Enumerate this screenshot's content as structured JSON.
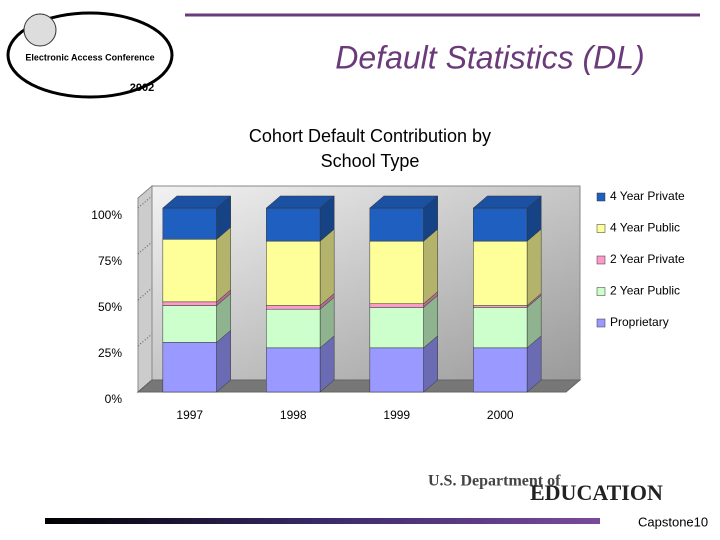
{
  "slide": {
    "title": "Default Statistics (DL)",
    "logo": {
      "name": "Electronic Access Conference",
      "year": "2002"
    },
    "footer": {
      "department": "U.S. Department of",
      "agency": "EDUCATION",
      "page": "Capstone10"
    }
  },
  "chart_data": {
    "type": "bar",
    "stacked": true,
    "three_d": true,
    "title": "Cohort Default Contribution by School Type",
    "categories": [
      "1997",
      "1998",
      "1999",
      "2000"
    ],
    "series": [
      {
        "name": "Proprietary",
        "color": "#9999ff",
        "values": [
          27,
          24,
          24,
          24
        ]
      },
      {
        "name": "2 Year Public",
        "color": "#ccffcc",
        "values": [
          20,
          21,
          22,
          22
        ]
      },
      {
        "name": "2 Year Private",
        "color": "#ff99cc",
        "values": [
          2,
          2,
          2,
          1
        ]
      },
      {
        "name": "4 Year Public",
        "color": "#ffff99",
        "values": [
          34,
          35,
          34,
          35
        ]
      },
      {
        "name": "4 Year Private",
        "color": "#1f5fbf",
        "values": [
          17,
          18,
          18,
          18
        ]
      }
    ],
    "ylim": [
      0,
      100
    ],
    "yticks": [
      {
        "value": 0,
        "label": "0%"
      },
      {
        "value": 25,
        "label": "25%"
      },
      {
        "value": 50,
        "label": "50%"
      },
      {
        "value": 75,
        "label": "75%"
      },
      {
        "value": 100,
        "label": "100%"
      }
    ],
    "grid": false,
    "legend": "right"
  }
}
